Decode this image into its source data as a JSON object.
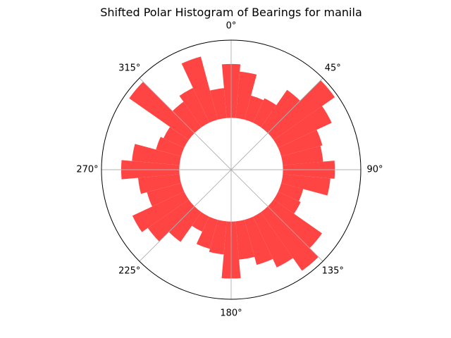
{
  "chart_data": {
    "type": "bar",
    "projection": "polar",
    "title": "Shifted Polar Histogram of Bearings for manila",
    "theta_zero_location": "N",
    "theta_direction": "clockwise",
    "angle_ticks": [
      {
        "angle": 0,
        "label": "0°"
      },
      {
        "angle": 45,
        "label": "45°"
      },
      {
        "angle": 90,
        "label": "90°"
      },
      {
        "angle": 135,
        "label": "135°"
      },
      {
        "angle": 180,
        "label": "180°"
      },
      {
        "angle": 225,
        "label": "225°"
      },
      {
        "angle": 270,
        "label": "270°"
      },
      {
        "angle": 315,
        "label": "315°"
      }
    ],
    "bin_width_deg": 10,
    "bin_centers_deg": [
      0,
      10,
      20,
      30,
      40,
      50,
      60,
      70,
      80,
      90,
      100,
      110,
      120,
      130,
      140,
      150,
      160,
      170,
      180,
      190,
      200,
      210,
      220,
      230,
      240,
      250,
      260,
      270,
      280,
      290,
      300,
      310,
      320,
      330,
      340,
      350
    ],
    "values": [
      0.52,
      0.45,
      0.24,
      0.26,
      0.44,
      0.72,
      0.57,
      0.41,
      0.39,
      0.5,
      0.46,
      0.22,
      0.24,
      0.57,
      0.69,
      0.54,
      0.45,
      0.37,
      0.55,
      0.32,
      0.29,
      0.16,
      0.35,
      0.48,
      0.55,
      0.34,
      0.4,
      0.56,
      0.46,
      0.25,
      0.22,
      0.7,
      0.3,
      0.37,
      0.63,
      0.29
    ],
    "inner_radius_fraction": 0.4,
    "rlim": [
      0,
      0.75
    ],
    "bar_color": "#ff4040",
    "grid": true,
    "grid_color": "#b0b0b0",
    "radial_tick_labels": false
  }
}
